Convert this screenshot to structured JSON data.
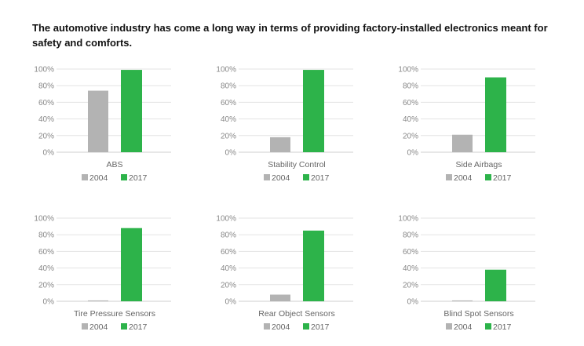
{
  "title": "The automotive industry has come a long way in terms of providing factory-installed electronics meant for safety and comforts.",
  "colors": {
    "2004": "#b3b3b3",
    "2017": "#2db34a"
  },
  "chart_data": [
    {
      "type": "bar",
      "categories": [
        "ABS"
      ],
      "series": [
        {
          "name": "2004",
          "values": [
            74
          ]
        },
        {
          "name": "2017",
          "values": [
            99
          ]
        }
      ],
      "ylim": [
        0,
        100
      ],
      "yticks": [
        "0%",
        "20%",
        "40%",
        "60%",
        "80%",
        "100%"
      ],
      "grid": true,
      "legend": "bottom"
    },
    {
      "type": "bar",
      "categories": [
        "Stability Control"
      ],
      "series": [
        {
          "name": "2004",
          "values": [
            18
          ]
        },
        {
          "name": "2017",
          "values": [
            99
          ]
        }
      ],
      "ylim": [
        0,
        100
      ],
      "yticks": [
        "0%",
        "20%",
        "40%",
        "60%",
        "80%",
        "100%"
      ],
      "grid": true,
      "legend": "bottom"
    },
    {
      "type": "bar",
      "categories": [
        "Side Airbags"
      ],
      "series": [
        {
          "name": "2004",
          "values": [
            21
          ]
        },
        {
          "name": "2017",
          "values": [
            90
          ]
        }
      ],
      "ylim": [
        0,
        100
      ],
      "yticks": [
        "0%",
        "20%",
        "40%",
        "60%",
        "80%",
        "100%"
      ],
      "grid": true,
      "legend": "bottom"
    },
    {
      "type": "bar",
      "categories": [
        "Tire Pressure Sensors"
      ],
      "series": [
        {
          "name": "2004",
          "values": [
            1
          ]
        },
        {
          "name": "2017",
          "values": [
            88
          ]
        }
      ],
      "ylim": [
        0,
        100
      ],
      "yticks": [
        "0%",
        "20%",
        "40%",
        "60%",
        "80%",
        "100%"
      ],
      "grid": true,
      "legend": "bottom"
    },
    {
      "type": "bar",
      "categories": [
        "Rear Object Sensors"
      ],
      "series": [
        {
          "name": "2004",
          "values": [
            8
          ]
        },
        {
          "name": "2017",
          "values": [
            85
          ]
        }
      ],
      "ylim": [
        0,
        100
      ],
      "yticks": [
        "0%",
        "20%",
        "40%",
        "60%",
        "80%",
        "100%"
      ],
      "grid": true,
      "legend": "bottom"
    },
    {
      "type": "bar",
      "categories": [
        "Blind Spot Sensors"
      ],
      "series": [
        {
          "name": "2004",
          "values": [
            1
          ]
        },
        {
          "name": "2017",
          "values": [
            38
          ]
        }
      ],
      "ylim": [
        0,
        100
      ],
      "yticks": [
        "0%",
        "20%",
        "40%",
        "60%",
        "80%",
        "100%"
      ],
      "grid": true,
      "legend": "bottom"
    }
  ]
}
